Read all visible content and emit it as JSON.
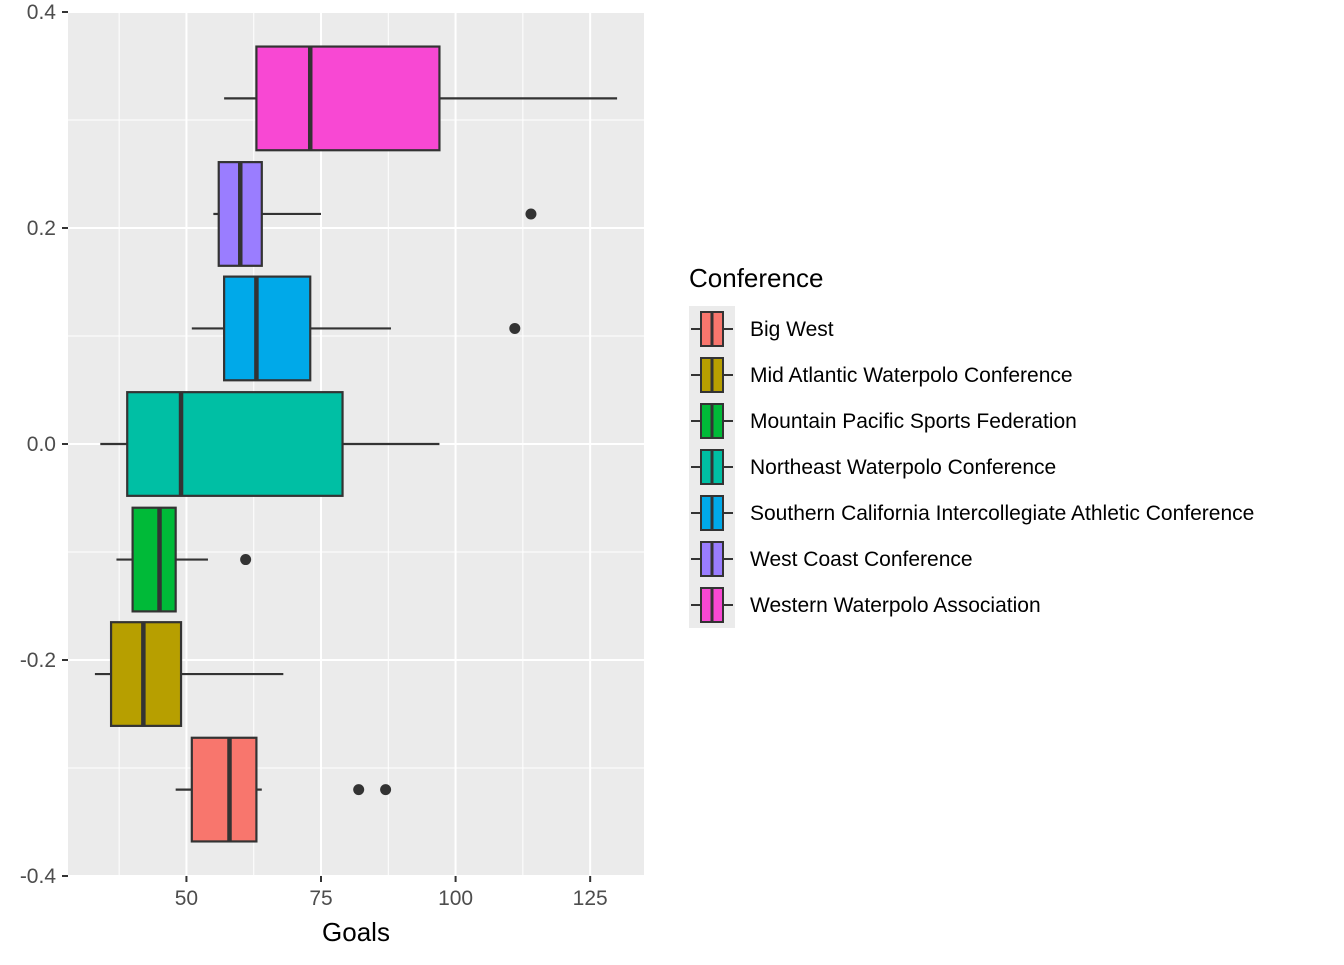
{
  "chart_data": {
    "type": "boxplot",
    "orientation": "horizontal",
    "xlabel": "Goals",
    "ylabel": "",
    "xlim": [
      28,
      135
    ],
    "ylim": [
      -0.4,
      0.4
    ],
    "x_ticks": [
      50,
      75,
      100,
      125
    ],
    "y_ticks": [
      -0.4,
      -0.2,
      0.0,
      0.2,
      0.4
    ],
    "y_tick_labels": [
      "-0.4",
      "-0.2",
      "0.0",
      "0.2",
      "0.4"
    ],
    "grid": true,
    "legend": {
      "title": "Conference",
      "placement": "right"
    },
    "series": [
      {
        "name": "Big West",
        "color": "#F8766D",
        "y_center": -0.32,
        "min": 48,
        "q1": 51,
        "median": 58,
        "q3": 63,
        "max": 64,
        "outliers": [
          82,
          87
        ]
      },
      {
        "name": "Mid Atlantic Waterpolo Conference",
        "color": "#B79F00",
        "y_center": -0.213,
        "min": 33,
        "q1": 36,
        "median": 42,
        "q3": 49,
        "max": 68,
        "outliers": []
      },
      {
        "name": "Mountain Pacific Sports Federation",
        "color": "#00BA38",
        "y_center": -0.107,
        "min": 37,
        "q1": 40,
        "median": 45,
        "q3": 48,
        "max": 54,
        "outliers": [
          61
        ]
      },
      {
        "name": "Northeast Waterpolo Conference",
        "color": "#00BFA4",
        "y_center": 0.0,
        "min": 34,
        "q1": 39,
        "median": 49,
        "q3": 79,
        "max": 97,
        "outliers": []
      },
      {
        "name": "Southern California Intercollegiate Athletic Conference",
        "color": "#00A9E9",
        "y_center": 0.107,
        "min": 51,
        "q1": 57,
        "median": 63,
        "q3": 73,
        "max": 88,
        "outliers": [
          111
        ]
      },
      {
        "name": "West Coast Conference",
        "color": "#9A7DFF",
        "y_center": 0.213,
        "min": 55,
        "q1": 56,
        "median": 60,
        "q3": 64,
        "max": 75,
        "outliers": [
          114
        ]
      },
      {
        "name": "Western Waterpolo Association",
        "color": "#F848D3",
        "y_center": 0.32,
        "min": 57,
        "q1": 63,
        "median": 73,
        "q3": 97,
        "max": 130,
        "outliers": []
      }
    ]
  }
}
